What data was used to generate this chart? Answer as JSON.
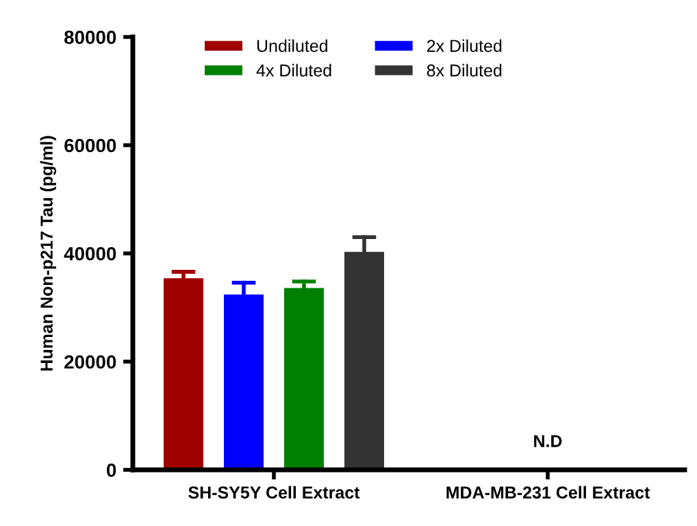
{
  "chart_data": {
    "type": "bar",
    "ylabel": "Human Non-p217 Tau (pg/ml)",
    "categories": [
      "SH-SY5Y Cell Extract",
      "MDA-MB-231 Cell Extract"
    ],
    "series": [
      {
        "name": "Undiluted",
        "color": "#a00000",
        "values": [
          35400,
          null
        ],
        "errors": [
          [
            35400,
            36600
          ],
          null
        ]
      },
      {
        "name": "2x Diluted",
        "color": "#0000ff",
        "values": [
          32400,
          null
        ],
        "errors": [
          [
            32400,
            34600
          ],
          null
        ]
      },
      {
        "name": "4x Diluted",
        "color": "#008000",
        "values": [
          33600,
          null
        ],
        "errors": [
          [
            33600,
            34800
          ],
          null
        ]
      },
      {
        "name": "8x Diluted",
        "color": "#333333",
        "values": [
          40300,
          null
        ],
        "errors": [
          [
            40300,
            43000
          ],
          null
        ]
      }
    ],
    "annotations": [
      "N.D"
    ],
    "ylim": [
      0,
      80000
    ],
    "yticks": [
      0,
      20000,
      40000,
      60000,
      80000
    ],
    "grid": false,
    "legend": "top"
  }
}
